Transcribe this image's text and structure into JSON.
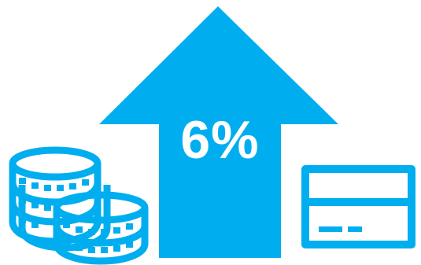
{
  "graphic": {
    "percentage_label": "6%",
    "icons": [
      "coins-stack-icon",
      "arrow-up-icon",
      "credit-card-icon"
    ],
    "colors": {
      "accent": "#00AEEF",
      "background": "#FFFFFF",
      "text": "#FFFFFF"
    }
  }
}
